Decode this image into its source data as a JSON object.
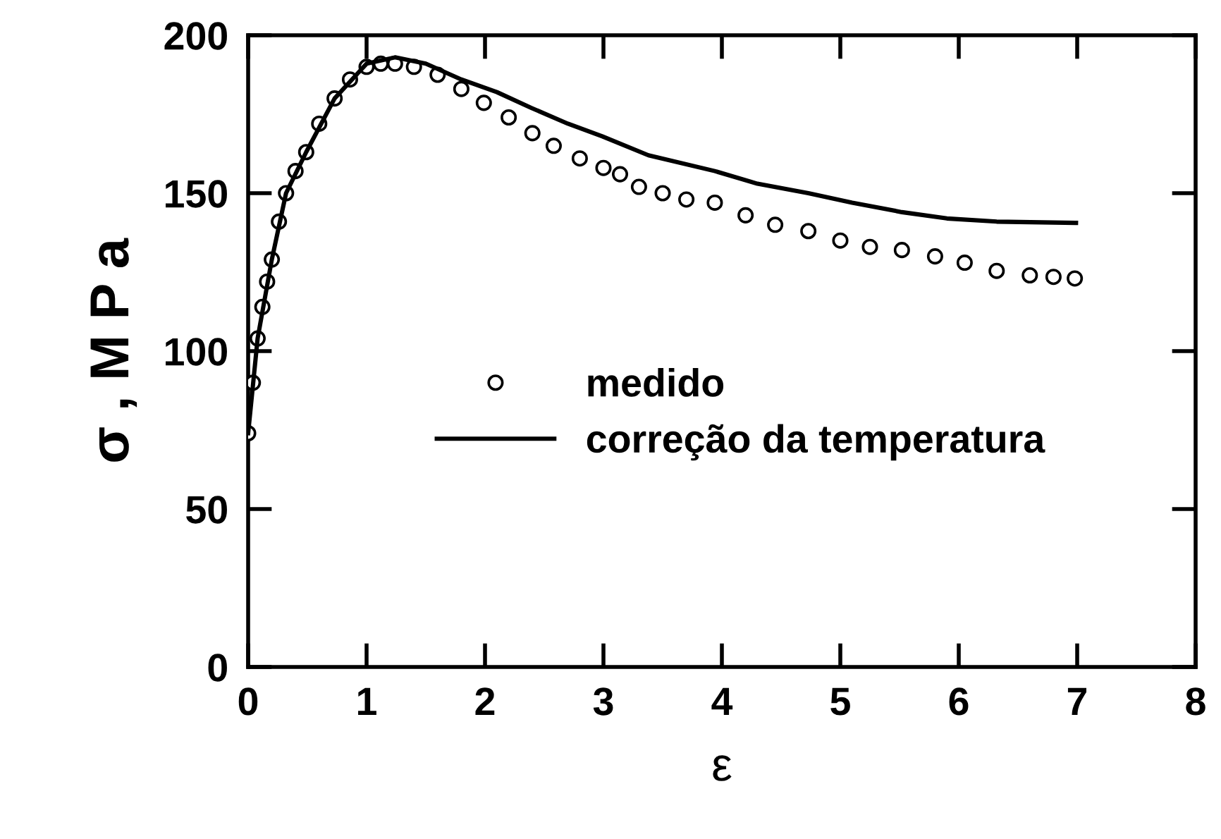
{
  "chart_data": {
    "type": "scatter",
    "xlabel": "ε",
    "ylabel": "σ , M P a",
    "xlim": [
      0,
      8
    ],
    "ylim": [
      0,
      200
    ],
    "xticks": [
      0,
      1,
      2,
      3,
      4,
      5,
      6,
      7,
      8
    ],
    "yticks": [
      0,
      50,
      100,
      150,
      200
    ],
    "grid": false,
    "legend": "center",
    "series": [
      {
        "name": "medido",
        "marker": "circle",
        "color": "#000000",
        "x": [
          0,
          0.04,
          0.08,
          0.12,
          0.16,
          0.2,
          0.26,
          0.32,
          0.4,
          0.49,
          0.6,
          0.73,
          0.86,
          1.0,
          1.12,
          1.24,
          1.4,
          1.6,
          1.8,
          1.99,
          2.2,
          2.4,
          2.58,
          2.8,
          3.0,
          3.14,
          3.3,
          3.5,
          3.7,
          3.94,
          4.2,
          4.45,
          4.73,
          5.0,
          5.25,
          5.52,
          5.8,
          6.05,
          6.32,
          6.6,
          6.8,
          6.98
        ],
        "values": [
          74,
          90,
          104,
          114,
          122,
          129,
          141,
          150,
          157,
          163,
          172,
          180,
          186,
          190,
          191,
          191,
          190,
          187.5,
          183,
          178.6,
          174,
          169,
          165,
          161,
          158,
          156,
          152,
          150,
          148,
          147,
          143,
          140,
          138,
          135,
          133,
          132,
          130,
          128,
          125.4,
          124,
          123.5,
          123
        ]
      },
      {
        "name": "correção da temperatura",
        "type": "line",
        "line_style": "solid",
        "color": "#000000",
        "x": [
          0,
          0.08,
          0.2,
          0.32,
          0.49,
          0.73,
          1.0,
          1.24,
          1.5,
          1.8,
          2.1,
          2.39,
          2.7,
          2.99,
          3.38,
          3.94,
          4.3,
          4.73,
          5.1,
          5.52,
          5.9,
          6.32,
          6.99
        ],
        "values": [
          74,
          104,
          129,
          150,
          163,
          180,
          191,
          193,
          191,
          186,
          182,
          177,
          172,
          168,
          162,
          157,
          153,
          150,
          147,
          144,
          142,
          141,
          140.6
        ]
      }
    ]
  }
}
